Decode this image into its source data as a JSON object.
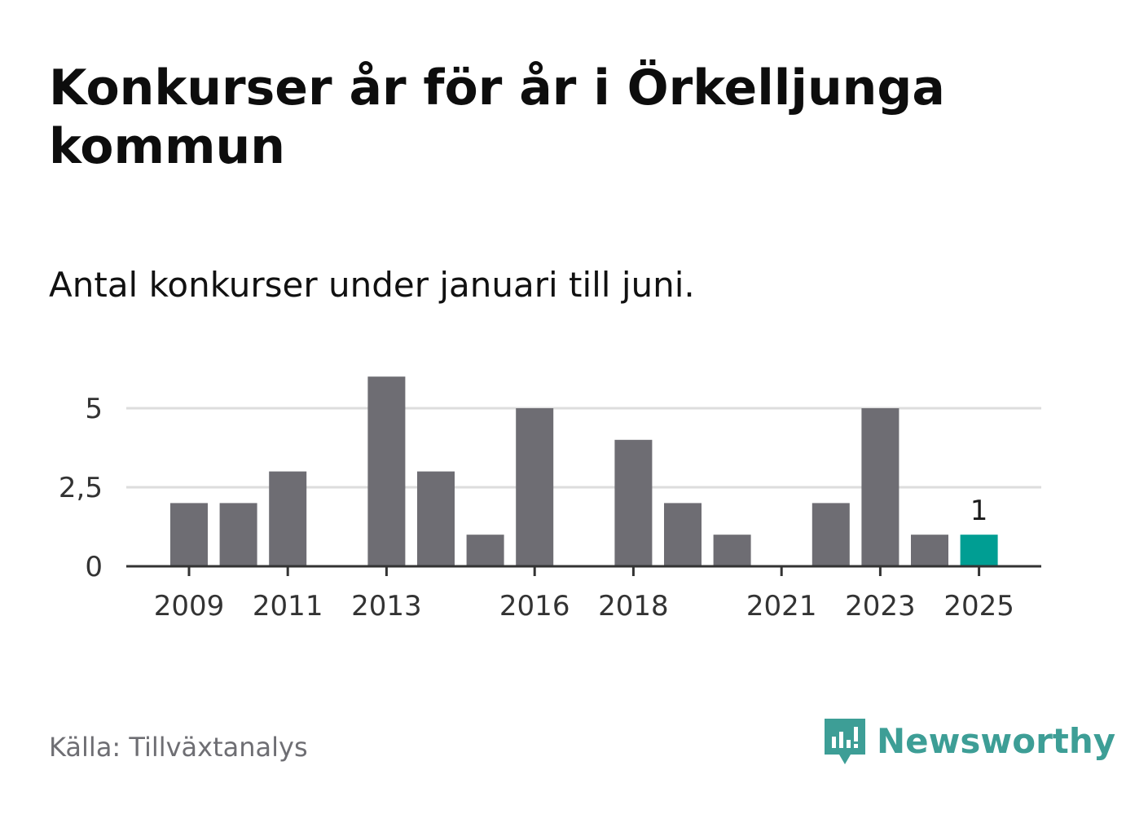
{
  "title": "Konkurser år för år i Örkelljunga kommun",
  "subtitle": "Antal konkurser under januari till juni.",
  "source": "Källa: Tillväxtanalys",
  "brand": {
    "name": "Newsworthy",
    "icon": "newsworthy-logo-icon",
    "color": "#3d9e96"
  },
  "colors": {
    "bar": "#6e6d73",
    "highlight": "#009e93",
    "grid": "#dddddd",
    "axis": "#333333"
  },
  "chart_data": {
    "type": "bar",
    "categories": [
      "2009",
      "2010",
      "2011",
      "2012",
      "2013",
      "2014",
      "2015",
      "2016",
      "2017",
      "2018",
      "2019",
      "2020",
      "2021",
      "2022",
      "2023",
      "2024",
      "2025"
    ],
    "values": [
      2,
      2,
      3,
      0,
      6,
      3,
      1,
      5,
      0,
      4,
      2,
      1,
      0,
      2,
      5,
      1,
      1
    ],
    "highlight_index": 16,
    "data_labels": [
      {
        "index": 16,
        "text": "1"
      }
    ],
    "x_tick_labels": [
      "2009",
      "2011",
      "2013",
      "2016",
      "2018",
      "2021",
      "2023",
      "2025"
    ],
    "y_ticks": [
      0,
      2.5,
      5
    ],
    "y_tick_labels": [
      "0",
      "2,5",
      "5"
    ],
    "ylim": [
      0,
      6
    ],
    "grid": true,
    "legend": "none",
    "title": "",
    "xlabel": "",
    "ylabel": ""
  }
}
